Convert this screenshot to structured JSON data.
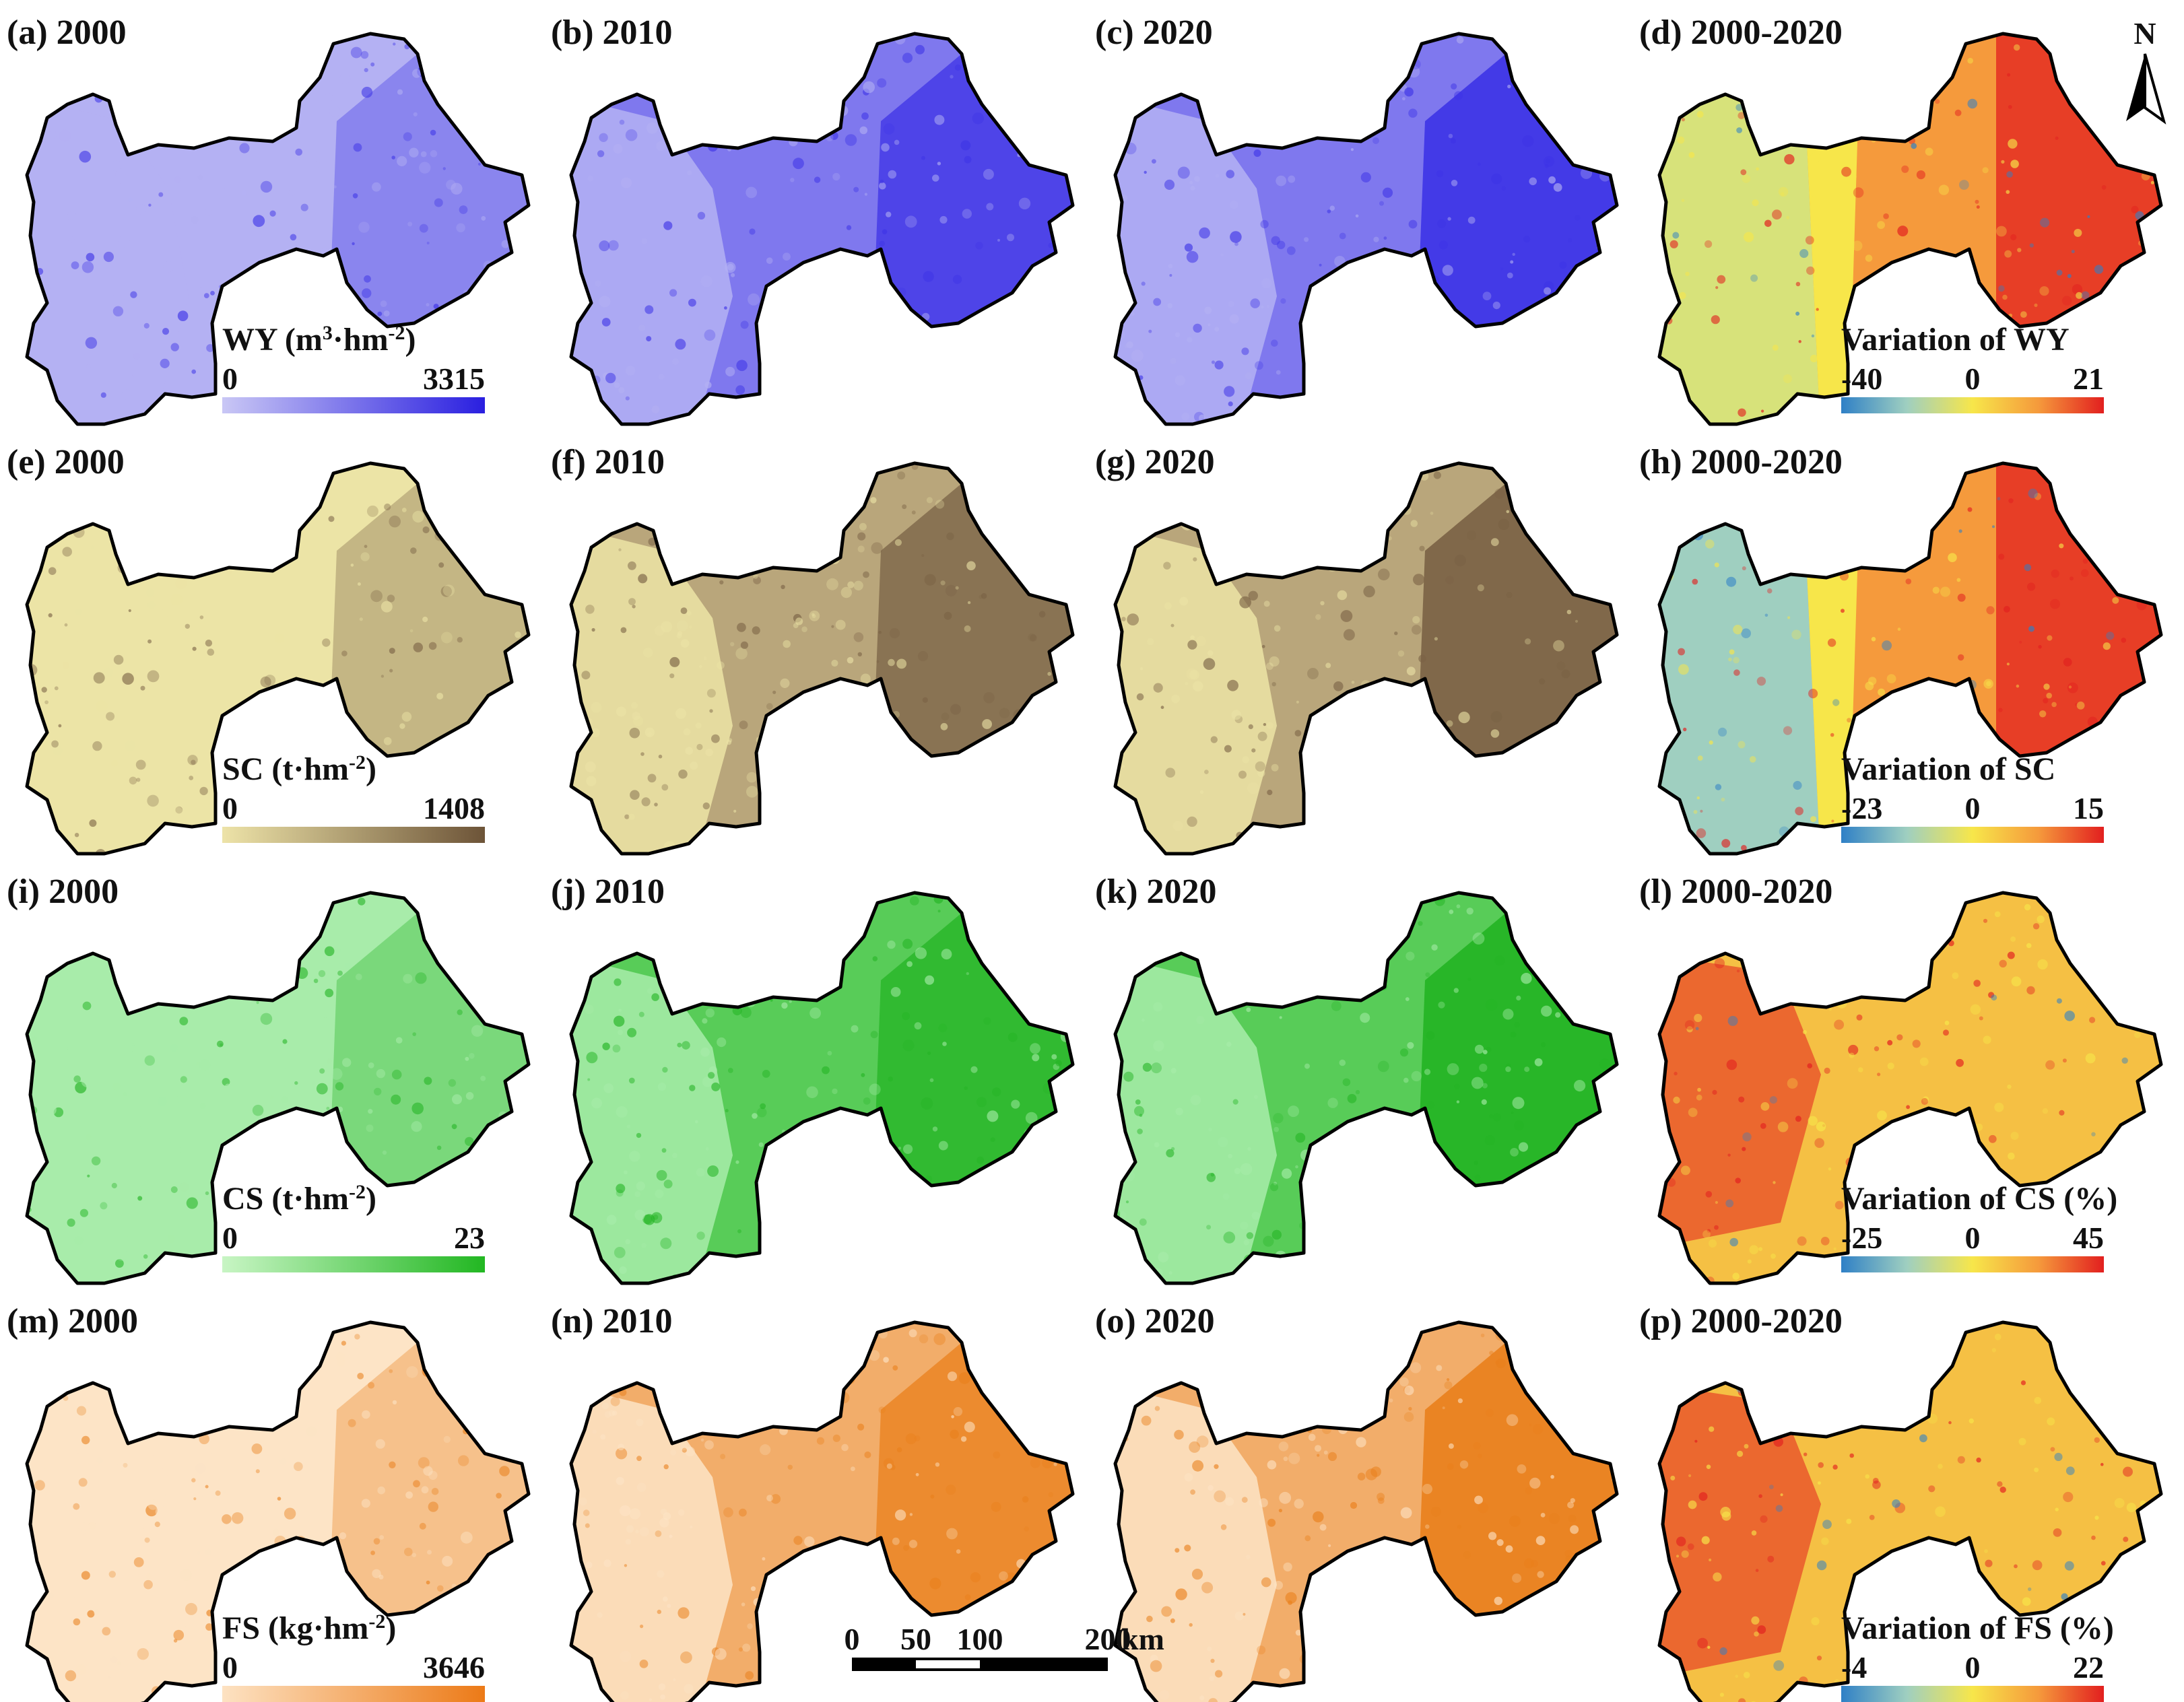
{
  "figure": {
    "rows": [
      {
        "variable": "WY",
        "panels": [
          {
            "label": "(a)",
            "year": "2000"
          },
          {
            "label": "(b)",
            "year": "2010"
          },
          {
            "label": "(c)",
            "year": "2020"
          },
          {
            "label": "(d)",
            "year": "2000-2020"
          }
        ],
        "legend": {
          "title_main": "WY (m",
          "title_sup1": "3",
          "title_mid": "·hm",
          "title_sup2": "-2",
          "title_end": ")",
          "min": "0",
          "max": "3315",
          "colors": [
            "#c9c7f5",
            "#2a1fe0"
          ]
        },
        "change_legend": {
          "title": "Variation of WY",
          "min": "-40",
          "mid": "0",
          "max": "21"
        },
        "palette": {
          "light": "#b4b1f3",
          "mid": "#7f78ee",
          "dark": "#3d33e6"
        }
      },
      {
        "variable": "SC",
        "panels": [
          {
            "label": "(e)",
            "year": "2000"
          },
          {
            "label": "(f)",
            "year": "2010"
          },
          {
            "label": "(g)",
            "year": "2020"
          },
          {
            "label": "(h)",
            "year": "2000-2020"
          }
        ],
        "legend": {
          "title_main": "SC (t·hm",
          "title_sup2": "-2",
          "title_end": ")",
          "min": "0",
          "max": "1408",
          "colors": [
            "#ede3a8",
            "#6d5438"
          ]
        },
        "change_legend": {
          "title": "Variation of SC",
          "min": "-23",
          "mid": "0",
          "max": "15"
        },
        "palette": {
          "light": "#ece4a6",
          "mid": "#b9a67b",
          "dark": "#7a6245"
        }
      },
      {
        "variable": "CS",
        "panels": [
          {
            "label": "(i)",
            "year": "2000"
          },
          {
            "label": "(j)",
            "year": "2010"
          },
          {
            "label": "(k)",
            "year": "2020"
          },
          {
            "label": "(l)",
            "year": "2000-2020"
          }
        ],
        "legend": {
          "title_main": "CS (t·hm",
          "title_sup2": "-2",
          "title_end": ")",
          "min": "0",
          "max": "23",
          "colors": [
            "#c8f5c4",
            "#22b722"
          ]
        },
        "change_legend": {
          "title": "Variation of CS (%)",
          "min": "-25",
          "mid": "0",
          "max": "45"
        },
        "palette": {
          "light": "#a8ecaa",
          "mid": "#58cc58",
          "dark": "#24b424"
        }
      },
      {
        "variable": "FS",
        "panels": [
          {
            "label": "(m)",
            "year": "2000"
          },
          {
            "label": "(n)",
            "year": "2010"
          },
          {
            "label": "(o)",
            "year": "2020"
          },
          {
            "label": "(p)",
            "year": "2000-2020"
          }
        ],
        "legend": {
          "title_main": "FS (kg·hm",
          "title_sup2": "-2",
          "title_end": ")",
          "min": "0",
          "max": "3646",
          "colors": [
            "#fde2c2",
            "#ec7a17"
          ]
        },
        "change_legend": {
          "title": "Variation of FS (%)",
          "min": "-4",
          "mid": "0",
          "max": "22"
        },
        "palette": {
          "light": "#fde4c6",
          "mid": "#f2ad6a",
          "dark": "#e9801c"
        }
      }
    ],
    "change_colors": [
      "#2f80c6",
      "#9fcfc0",
      "#f7e64a",
      "#f59a3c",
      "#e21f1f"
    ],
    "scale_bar": {
      "ticks": [
        "0",
        "50",
        "100",
        "200"
      ],
      "unit": "km"
    },
    "north_arrow": {
      "label": "N"
    }
  }
}
